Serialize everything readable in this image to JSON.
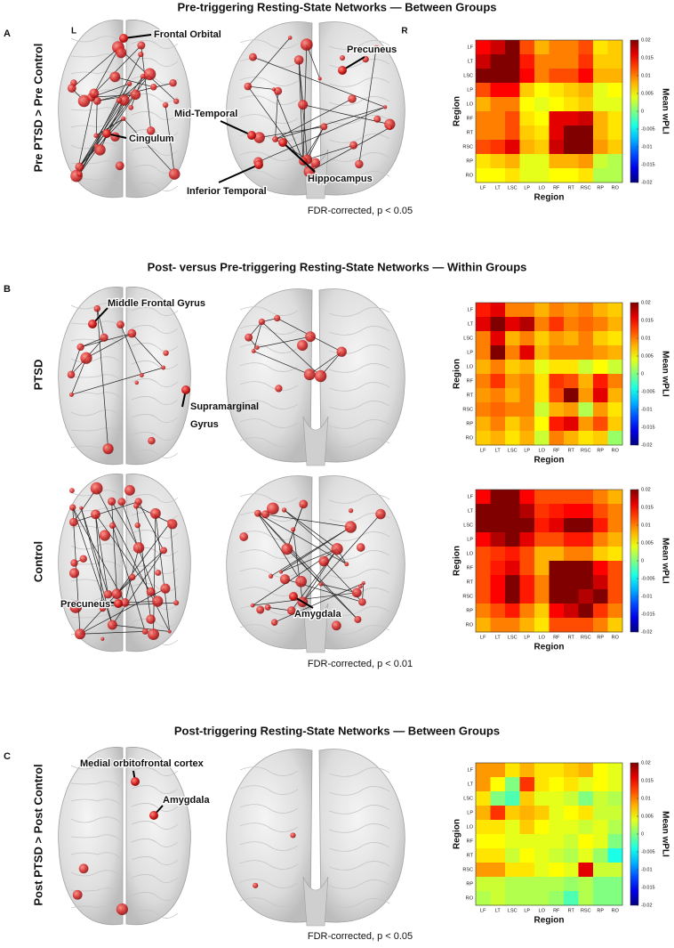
{
  "heatmap_axes": {
    "categories": [
      "LF",
      "LT",
      "LSC",
      "LP",
      "LO",
      "RF",
      "RT",
      "RSC",
      "RP",
      "RO"
    ],
    "x_label": "Region",
    "y_label": "Region",
    "colorbar_label": "Mean wPLI",
    "clim": [
      -0.02,
      0.02
    ],
    "cticks": [
      0.02,
      0.015,
      0.01,
      0.005,
      0,
      -0.005,
      -0.01,
      -0.015,
      -0.02
    ],
    "colormap": "jet"
  },
  "panels": [
    {
      "letter": "A",
      "title": "Pre-triggering Resting-State Networks — Between Groups",
      "hemisphere_labels": [
        "L",
        "R"
      ],
      "rows": [
        {
          "label": "Pre PTSD > Pre Control",
          "annotations": [
            "Frontal Orbital",
            "Cingulum",
            "Precuneus",
            "Mid-Temporal",
            "Hippocampus",
            "Inferior Temporal"
          ],
          "heatmap": {
            "type": "heatmap",
            "values": [
              [
                0.015,
                0.017,
                0.02,
                0.012,
                0.008,
                0.01,
                0.01,
                0.012,
                0.006,
                0.007
              ],
              [
                0.017,
                0.02,
                0.02,
                0.014,
                0.01,
                0.01,
                0.01,
                0.013,
                0.007,
                0.007
              ],
              [
                0.02,
                0.02,
                0.02,
                0.015,
                0.01,
                0.012,
                0.012,
                0.015,
                0.008,
                0.008
              ],
              [
                0.012,
                0.015,
                0.015,
                0.007,
                0.005,
                0.006,
                0.007,
                0.008,
                0.004,
                0.005
              ],
              [
                0.008,
                0.01,
                0.01,
                0.005,
                0.004,
                0.005,
                0.006,
                0.007,
                0.004,
                0.004
              ],
              [
                0.01,
                0.01,
                0.012,
                0.006,
                0.005,
                0.016,
                0.016,
                0.017,
                0.008,
                0.006
              ],
              [
                0.01,
                0.01,
                0.012,
                0.007,
                0.006,
                0.016,
                0.02,
                0.02,
                0.008,
                0.006
              ],
              [
                0.012,
                0.013,
                0.016,
                0.008,
                0.007,
                0.017,
                0.02,
                0.02,
                0.009,
                0.007
              ],
              [
                0.006,
                0.007,
                0.008,
                0.004,
                0.004,
                0.008,
                0.008,
                0.009,
                0.003,
                0.002
              ],
              [
                0.005,
                0.005,
                0.006,
                0.004,
                0.004,
                0.005,
                0.005,
                0.006,
                0.002,
                0.002
              ]
            ]
          }
        }
      ],
      "note": "FDR-corrected, p < 0.05"
    },
    {
      "letter": "B",
      "title": "Post- versus Pre-triggering Resting-State Networks — Within Groups",
      "rows": [
        {
          "label": "PTSD",
          "annotations": [
            "Middle Frontal Gyrus",
            "Supramarginal Gyrus"
          ],
          "heatmap": {
            "type": "heatmap",
            "values": [
              [
                0.014,
                0.016,
                0.01,
                0.01,
                0.008,
                0.01,
                0.009,
                0.01,
                0.008,
                0.007
              ],
              [
                0.016,
                0.02,
                0.016,
                0.018,
                0.01,
                0.013,
                0.01,
                0.011,
                0.01,
                0.008
              ],
              [
                0.01,
                0.016,
                0.008,
                0.01,
                0.007,
                0.009,
                0.008,
                0.01,
                0.007,
                0.006
              ],
              [
                0.01,
                0.02,
                0.01,
                0.016,
                0.008,
                0.01,
                0.01,
                0.01,
                0.009,
                0.008
              ],
              [
                0.008,
                0.01,
                0.007,
                0.008,
                0.004,
                0.006,
                0.006,
                0.003,
                0.005,
                0.003
              ],
              [
                0.01,
                0.013,
                0.009,
                0.01,
                0.006,
                0.013,
                0.012,
                0.008,
                0.014,
                0.01
              ],
              [
                0.009,
                0.01,
                0.008,
                0.01,
                0.006,
                0.012,
                0.02,
                0.009,
                0.016,
                0.008
              ],
              [
                0.01,
                0.011,
                0.01,
                0.01,
                0.003,
                0.008,
                0.009,
                0.002,
                0.009,
                0.006
              ],
              [
                0.008,
                0.01,
                0.007,
                0.009,
                0.005,
                0.014,
                0.016,
                0.009,
                0.012,
                0.007
              ],
              [
                0.007,
                0.008,
                0.006,
                0.008,
                0.003,
                0.01,
                0.008,
                0.006,
                0.007,
                0.001
              ]
            ]
          }
        },
        {
          "label": "Control",
          "annotations": [
            "Precuneus",
            "Amygdala"
          ],
          "heatmap": {
            "type": "heatmap",
            "values": [
              [
                0.015,
                0.02,
                0.02,
                0.015,
                0.012,
                0.012,
                0.012,
                0.012,
                0.01,
                0.008
              ],
              [
                0.02,
                0.02,
                0.02,
                0.018,
                0.013,
                0.014,
                0.015,
                0.015,
                0.012,
                0.01
              ],
              [
                0.02,
                0.02,
                0.02,
                0.02,
                0.014,
                0.016,
                0.02,
                0.02,
                0.014,
                0.01
              ],
              [
                0.015,
                0.018,
                0.02,
                0.016,
                0.012,
                0.012,
                0.014,
                0.014,
                0.01,
                0.008
              ],
              [
                0.012,
                0.013,
                0.014,
                0.012,
                0.008,
                0.008,
                0.01,
                0.01,
                0.007,
                0.006
              ],
              [
                0.012,
                0.014,
                0.016,
                0.012,
                0.008,
                0.02,
                0.02,
                0.02,
                0.015,
                0.012
              ],
              [
                0.012,
                0.015,
                0.02,
                0.014,
                0.01,
                0.02,
                0.02,
                0.02,
                0.017,
                0.012
              ],
              [
                0.012,
                0.015,
                0.02,
                0.014,
                0.01,
                0.02,
                0.02,
                0.018,
                0.02,
                0.012
              ],
              [
                0.01,
                0.012,
                0.014,
                0.01,
                0.007,
                0.015,
                0.017,
                0.02,
                0.013,
                0.01
              ],
              [
                0.008,
                0.01,
                0.01,
                0.008,
                0.006,
                0.012,
                0.012,
                0.012,
                0.01,
                0.007
              ]
            ]
          }
        }
      ],
      "note": "FDR-corrected, p < 0.01"
    },
    {
      "letter": "C",
      "title": "Post-triggering Resting-State Networks — Between Groups",
      "rows": [
        {
          "label": "Post PTSD > Post Control",
          "annotations": [
            "Medial orbitofrontal cortex",
            "Amygdala"
          ],
          "heatmap": {
            "type": "heatmap",
            "values": [
              [
                0.009,
                0.009,
                0.006,
                0.008,
                0.006,
                0.006,
                0.007,
                0.008,
                0.005,
                0.004
              ],
              [
                0.009,
                0.005,
                0,
                0.013,
                0.006,
                0.005,
                0.006,
                0.004,
                0.005,
                0.004
              ],
              [
                0.006,
                0,
                -0.002,
                0.007,
                0.004,
                0.004,
                0.003,
                0,
                0.003,
                0.002
              ],
              [
                0.008,
                0.013,
                0.007,
                0.008,
                0.007,
                0.004,
                0.005,
                0.006,
                0.003,
                0.003
              ],
              [
                0.006,
                0.006,
                0.004,
                0.007,
                0.005,
                0.004,
                0.004,
                0.003,
                0.004,
                0.002
              ],
              [
                0.005,
                0.005,
                0.004,
                0.004,
                0.004,
                0.004,
                0.003,
                0.005,
                0.004,
                0
              ],
              [
                0.006,
                0.006,
                0.003,
                0.005,
                0.004,
                0.003,
                0.002,
                0.004,
                0.001,
                -0.004
              ],
              [
                0.009,
                0.009,
                0.006,
                0.006,
                0.004,
                0.005,
                0.004,
                0.016,
                0.003,
                0.003
              ],
              [
                0.003,
                0.003,
                0.002,
                0.002,
                0.002,
                0.002,
                0.001,
                0.002,
                0,
                0
              ],
              [
                0.002,
                0.003,
                0.002,
                0.002,
                0.002,
                0.001,
                -0.002,
                0.002,
                0,
                0
              ]
            ]
          }
        }
      ],
      "note": "FDR-corrected, p < 0.05"
    }
  ]
}
